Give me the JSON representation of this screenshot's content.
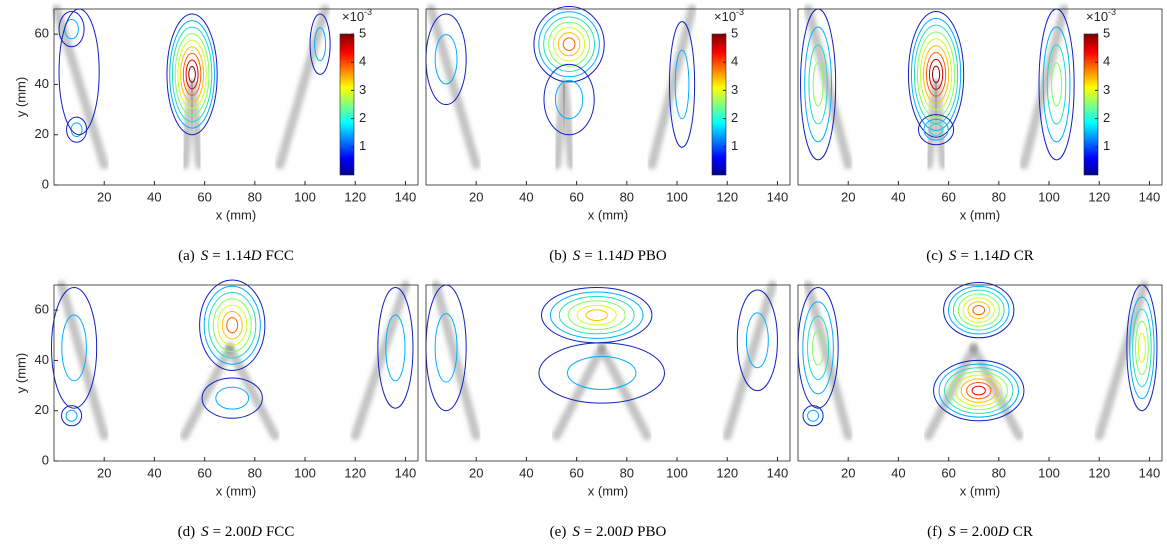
{
  "chart_data": [
    {
      "type": "contour",
      "caption": [
        "(a)",
        "S",
        "= 1.14",
        "D",
        "FCC"
      ],
      "xlabel": "x (mm)",
      "ylabel": "y (mm)",
      "xlim": [
        0,
        145
      ],
      "ylim": [
        0,
        70
      ],
      "xticks": [
        20,
        40,
        60,
        80,
        100,
        120,
        140
      ],
      "yticks": [
        0,
        20,
        40,
        60
      ],
      "colorbar": {
        "lim": [
          0,
          5
        ],
        "ticks": [
          1,
          2,
          3,
          4,
          5
        ],
        "multiplier": "×10",
        "exponent": "-3"
      }
    },
    {
      "type": "contour",
      "caption": [
        "(b)",
        "S",
        "= 1.14",
        "D",
        "PBO"
      ],
      "xlabel": "x (mm)",
      "xlim": [
        0,
        145
      ],
      "ylim": [
        0,
        70
      ],
      "xticks": [
        20,
        40,
        60,
        80,
        100,
        120,
        140
      ],
      "colorbar": {
        "lim": [
          0,
          5
        ],
        "ticks": [
          1,
          2,
          3,
          4,
          5
        ],
        "multiplier": "×10",
        "exponent": "-3"
      }
    },
    {
      "type": "contour",
      "caption": [
        "(c)",
        "S",
        "= 1.14",
        "D",
        "CR"
      ],
      "xlabel": "x (mm)",
      "xlim": [
        0,
        145
      ],
      "ylim": [
        0,
        70
      ],
      "xticks": [
        20,
        40,
        60,
        80,
        100,
        120,
        140
      ],
      "colorbar": {
        "lim": [
          0,
          5
        ],
        "ticks": [
          1,
          2,
          3,
          4,
          5
        ],
        "multiplier": "×10",
        "exponent": "-3"
      }
    },
    {
      "type": "contour",
      "caption": [
        "(d)",
        "S",
        "= 2.00",
        "D",
        "FCC"
      ],
      "xlabel": "x (mm)",
      "ylabel": "y (mm)",
      "xlim": [
        0,
        145
      ],
      "ylim": [
        0,
        70
      ],
      "xticks": [
        20,
        40,
        60,
        80,
        100,
        120,
        140
      ],
      "yticks": [
        0,
        20,
        40,
        60
      ]
    },
    {
      "type": "contour",
      "caption": [
        "(e)",
        "S",
        "= 2.00",
        "D",
        "PBO"
      ],
      "xlabel": "x (mm)",
      "xlim": [
        0,
        145
      ],
      "ylim": [
        0,
        70
      ],
      "xticks": [
        20,
        40,
        60,
        80,
        100,
        120,
        140
      ]
    },
    {
      "type": "contour",
      "caption": [
        "(f)",
        "S",
        "= 2.00",
        "D",
        "CR"
      ],
      "xlabel": "x (mm)",
      "xlim": [
        0,
        145
      ],
      "ylim": [
        0,
        70
      ],
      "xticks": [
        20,
        40,
        60,
        80,
        100,
        120,
        140
      ]
    }
  ]
}
